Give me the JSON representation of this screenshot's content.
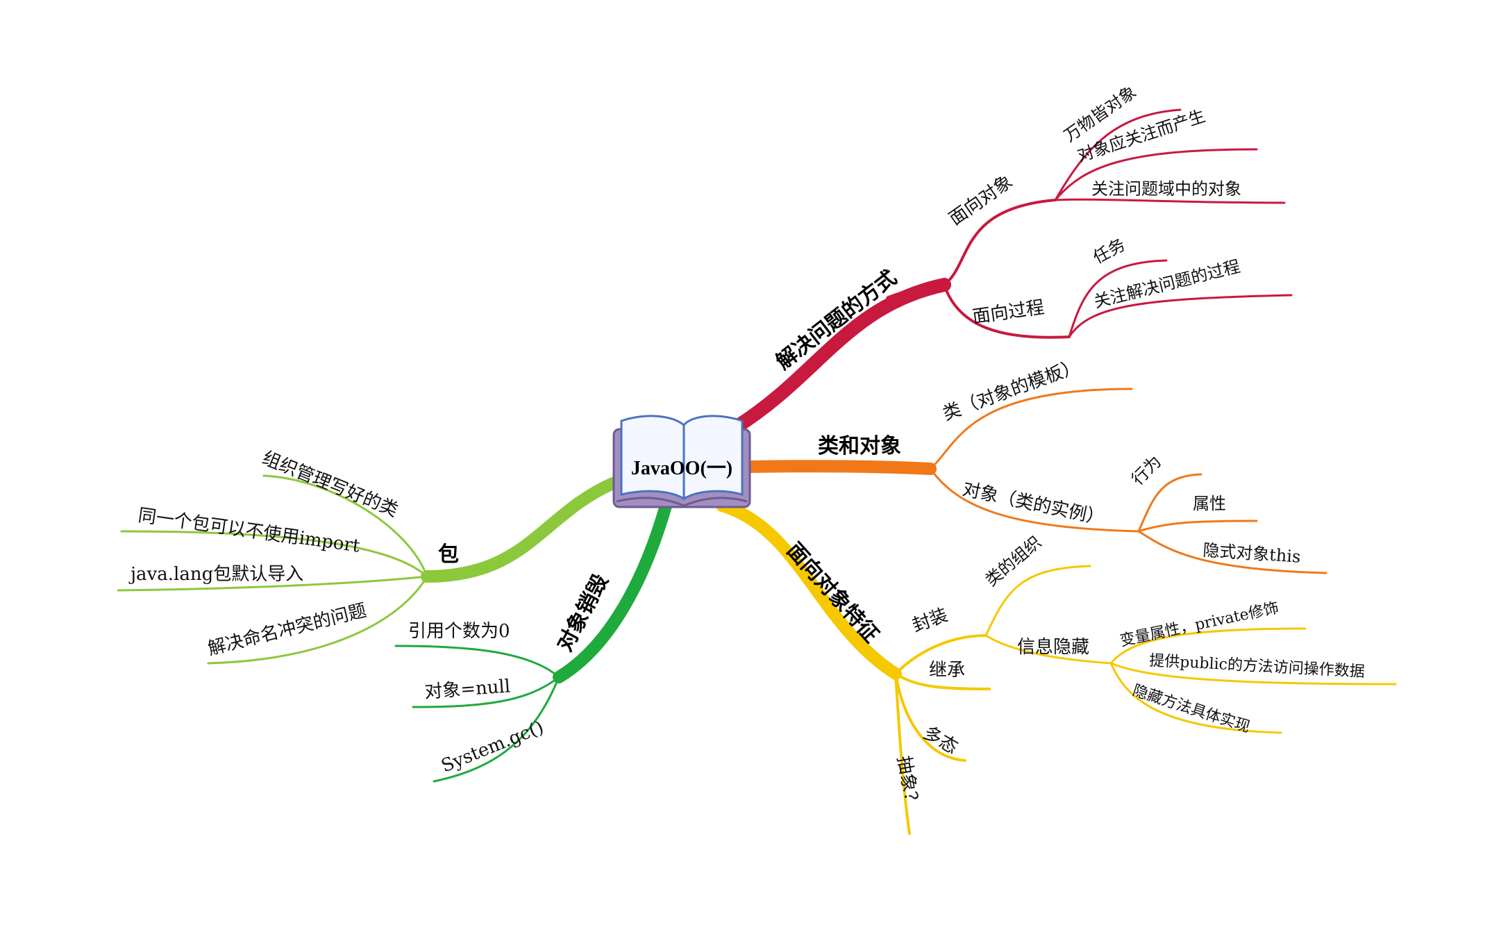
{
  "center": {
    "title": "JavaOO(一)",
    "icon": "open-book-icon"
  },
  "branches": {
    "solve": {
      "label": "解决问题的方式",
      "color": "#c8193f",
      "oo": {
        "label": "面向对象",
        "items": [
          "万物皆对象",
          "对象应关注而产生",
          "关注问题域中的对象"
        ]
      },
      "op": {
        "label": "面向过程",
        "items": [
          "任务",
          "关注解决问题的过程"
        ]
      }
    },
    "class_obj": {
      "label": "类和对象",
      "color": "#f07818",
      "cls": {
        "label": "类（对象的模板）"
      },
      "obj": {
        "label": "对象（类的实例）",
        "items": [
          "行为",
          "属性",
          "隐式对象this"
        ]
      }
    },
    "features": {
      "label": "面向对象特征",
      "color": "#f5c800",
      "encap": {
        "label": "封装",
        "org": "类的组织",
        "hide": {
          "label": "信息隐藏",
          "items": [
            "变量属性，private修饰",
            "提供public的方法访问操作数据",
            "隐藏方法具体实现"
          ]
        }
      },
      "inherit": "继承",
      "poly": "多态",
      "abstract": "抽象？"
    },
    "destroy": {
      "label": "对象销毁",
      "color": "#1eaa3c",
      "items": [
        "引用个数为0",
        "对象=null",
        "System.gc()"
      ]
    },
    "package": {
      "label": "包",
      "color": "#8cc83c",
      "items": [
        "组织管理写好的类",
        "同一个包可以不使用import",
        "java.lang包默认导入",
        "解决命名冲突的问题"
      ]
    }
  }
}
